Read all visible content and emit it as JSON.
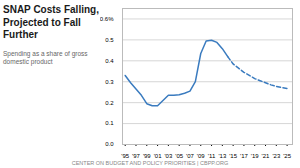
{
  "chart_data": {
    "type": "line",
    "title": "SNAP Costs Falling,\nProjected to Fall\nFurther",
    "subtitle": "Spending as a share of gross\ndomestic product",
    "caption": "CENTER ON BUDGET AND POLICY PRIORITIES | CBPP.ORG",
    "color": "#3a7bbf",
    "series": [
      {
        "line_style": "solid",
        "x": [
          1995,
          1996,
          1997,
          1998,
          1999,
          2000,
          2001,
          2002,
          2003,
          2004,
          2005,
          2006,
          2007,
          2008,
          2009,
          2010,
          2011,
          2012,
          2013,
          2014
        ],
        "values": [
          0.33,
          0.295,
          0.265,
          0.235,
          0.195,
          0.185,
          0.185,
          0.21,
          0.235,
          0.235,
          0.238,
          0.245,
          0.255,
          0.3,
          0.435,
          0.495,
          0.498,
          0.488,
          0.458,
          0.42
        ]
      },
      {
        "line_style": "dashed",
        "x": [
          2014,
          2015,
          2016,
          2017,
          2018,
          2019,
          2020,
          2021,
          2022,
          2023,
          2024,
          2025
        ],
        "values": [
          0.42,
          0.385,
          0.365,
          0.345,
          0.33,
          0.315,
          0.305,
          0.295,
          0.285,
          0.278,
          0.272,
          0.268
        ]
      }
    ],
    "xlim": [
      1994.5,
      2026.0
    ],
    "ylim": [
      0.0,
      0.65
    ],
    "yticks": [
      {
        "value": 0.0,
        "label": "0.0"
      },
      0.1,
      0.2,
      0.3,
      0.4,
      0.5,
      {
        "value": 0.6,
        "label": "0.6%"
      }
    ],
    "xticks": [
      {
        "value": 1995,
        "label": "'95"
      },
      {
        "value": 1997,
        "label": "'97"
      },
      {
        "value": 1999,
        "label": "'99"
      },
      {
        "value": 2001,
        "label": "'01"
      },
      {
        "value": 2003,
        "label": "'03"
      },
      {
        "value": 2005,
        "label": "'05"
      },
      {
        "value": 2007,
        "label": "'07"
      },
      {
        "value": 2009,
        "label": "'09"
      },
      {
        "value": 2011,
        "label": "'11"
      },
      {
        "value": 2013,
        "label": "'13"
      },
      {
        "value": 2015,
        "label": "'15"
      },
      {
        "value": 2017,
        "label": "'17"
      },
      {
        "value": 2019,
        "label": "'19"
      },
      {
        "value": 2021,
        "label": "'21"
      },
      {
        "value": 2023,
        "label": "'23"
      },
      {
        "value": 2025,
        "label": "'25"
      }
    ],
    "grid": true
  }
}
